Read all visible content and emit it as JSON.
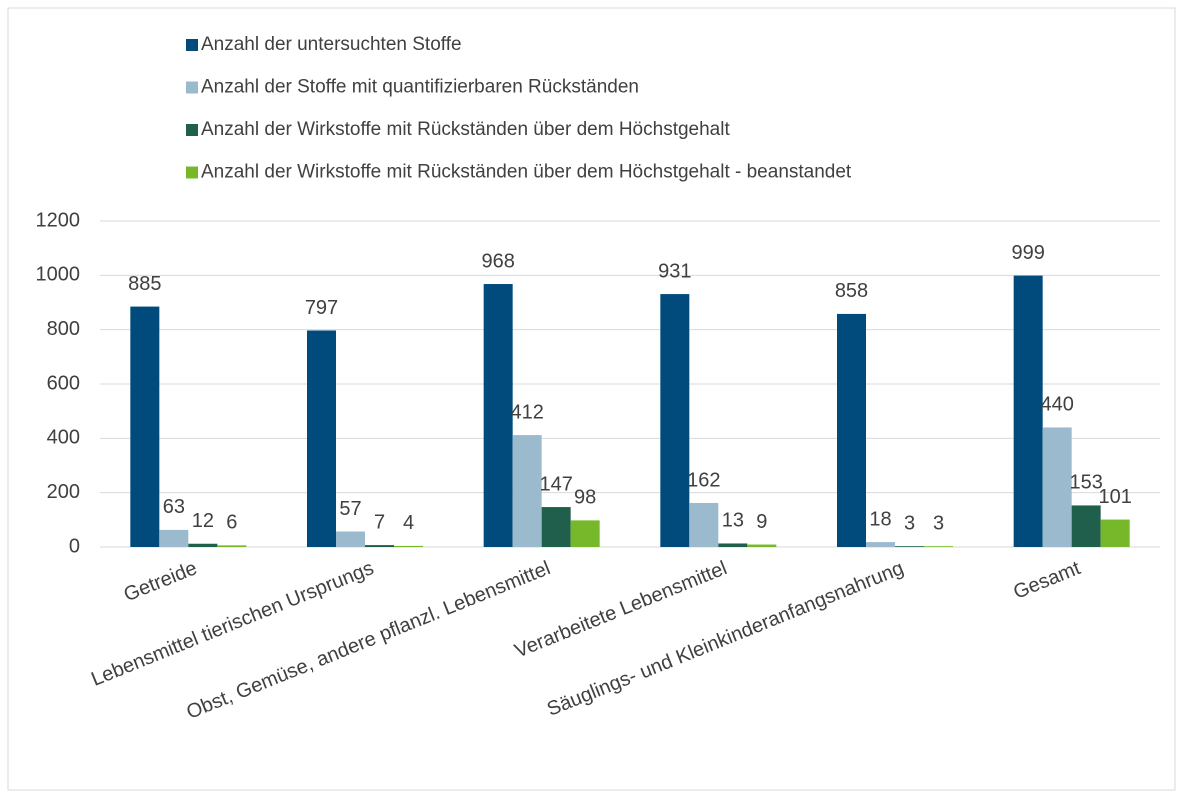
{
  "chart_data": {
    "type": "bar",
    "categories": [
      "Getreide",
      "Lebensmittel tierischen Ursprungs",
      "Obst, Gemüse, andere pflanzl. Lebensmittel",
      "Verarbeitete Lebensmittel",
      "Säuglings- und Kleinkinderanfangsnahrung",
      "Gesamt"
    ],
    "series": [
      {
        "name": "Anzahl der untersuchten Stoffe",
        "color": "#004b7c",
        "values": [
          885,
          797,
          968,
          931,
          858,
          999
        ]
      },
      {
        "name": "Anzahl der Stoffe mit quantifizierbaren Rückständen",
        "color": "#9cbacd",
        "values": [
          63,
          57,
          412,
          162,
          18,
          440
        ]
      },
      {
        "name": "Anzahl der Wirkstoffe mit Rückständen über dem Höchstgehalt",
        "color": "#1f5f4b",
        "values": [
          12,
          7,
          147,
          13,
          3,
          153
        ]
      },
      {
        "name": "Anzahl der Wirkstoffe mit Rückständen über dem Höchstgehalt - beanstandet",
        "color": "#76b82a",
        "values": [
          6,
          4,
          98,
          9,
          3,
          101
        ]
      }
    ],
    "ylim": [
      0,
      1200
    ],
    "yticks": [
      0,
      200,
      400,
      600,
      800,
      1000,
      1200
    ],
    "grid": true
  }
}
